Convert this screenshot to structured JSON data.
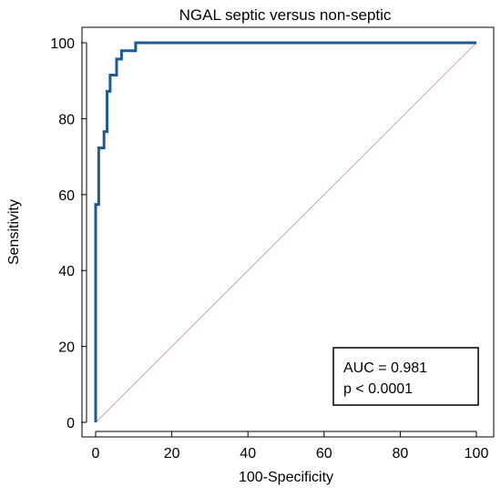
{
  "chart_data": {
    "type": "line",
    "title": "NGAL septic versus non-septic",
    "xlabel": "100-Specificity",
    "ylabel": "Sensitivity",
    "xlim": [
      0,
      100
    ],
    "ylim": [
      0,
      100
    ],
    "xticks": [
      "0",
      "20",
      "40",
      "60",
      "80",
      "100"
    ],
    "yticks": [
      "0",
      "20",
      "40",
      "60",
      "80",
      "100"
    ],
    "grid": false,
    "series": [
      {
        "role": "roc",
        "color": "#1f5a96",
        "x": [
          0,
          0,
          0.8,
          0.8,
          2.2,
          2.2,
          3.0,
          3.0,
          3.8,
          3.8,
          5.5,
          5.5,
          6.8,
          6.8,
          10.5,
          10.5,
          12.5,
          12.5,
          100
        ],
        "y": [
          0,
          57.4,
          57.4,
          72.3,
          72.3,
          76.6,
          76.6,
          87.2,
          87.2,
          91.5,
          91.5,
          95.7,
          95.7,
          97.9,
          97.9,
          100,
          100,
          100,
          100
        ]
      },
      {
        "role": "reference",
        "color": "#d9a3a3",
        "x": [
          0,
          100
        ],
        "y": [
          0,
          100
        ]
      }
    ],
    "annotation": {
      "lines": [
        "AUC = 0.981",
        "p < 0.0001"
      ],
      "placement": "bottom-right"
    }
  }
}
